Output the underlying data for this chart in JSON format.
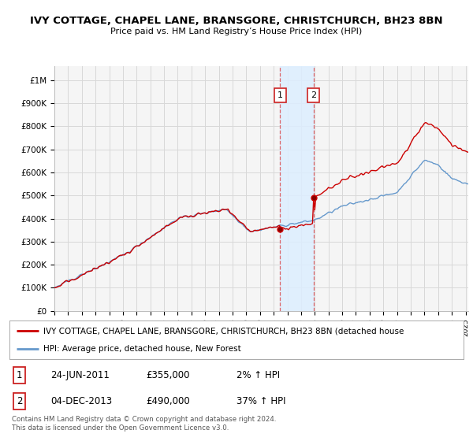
{
  "title": "IVY COTTAGE, CHAPEL LANE, BRANSGORE, CHRISTCHURCH, BH23 8BN",
  "subtitle": "Price paid vs. HM Land Registry’s House Price Index (HPI)",
  "yticks": [
    0,
    100000,
    200000,
    300000,
    400000,
    500000,
    600000,
    700000,
    800000,
    900000,
    1000000
  ],
  "ytick_labels": [
    "£0",
    "£100K",
    "£200K",
    "£300K",
    "£400K",
    "£500K",
    "£600K",
    "£700K",
    "£800K",
    "£900K",
    "£1M"
  ],
  "ylim": [
    0,
    1060000
  ],
  "background_color": "#ffffff",
  "plot_bg_color": "#f5f5f5",
  "grid_color": "#d8d8d8",
  "sale1_x": 2011.48,
  "sale1_y": 355000,
  "sale2_x": 2013.92,
  "sale2_y": 490000,
  "shade_x1": 2011.48,
  "shade_x2": 2013.92,
  "hpi_color": "#6699cc",
  "red_color": "#cc0000",
  "legend_red_label": "IVY COTTAGE, CHAPEL LANE, BRANSGORE, CHRISTCHURCH, BH23 8BN (detached house",
  "legend_hpi_label": "HPI: Average price, detached house, New Forest",
  "table_rows": [
    {
      "num": "1",
      "date": "24-JUN-2011",
      "price": "£355,000",
      "hpi": "2% ↑ HPI"
    },
    {
      "num": "2",
      "date": "04-DEC-2013",
      "price": "£490,000",
      "hpi": "37% ↑ HPI"
    }
  ],
  "footer": "Contains HM Land Registry data © Crown copyright and database right 2024.\nThis data is licensed under the Open Government Licence v3.0.",
  "xmin": 1995.0,
  "xmax": 2025.2
}
